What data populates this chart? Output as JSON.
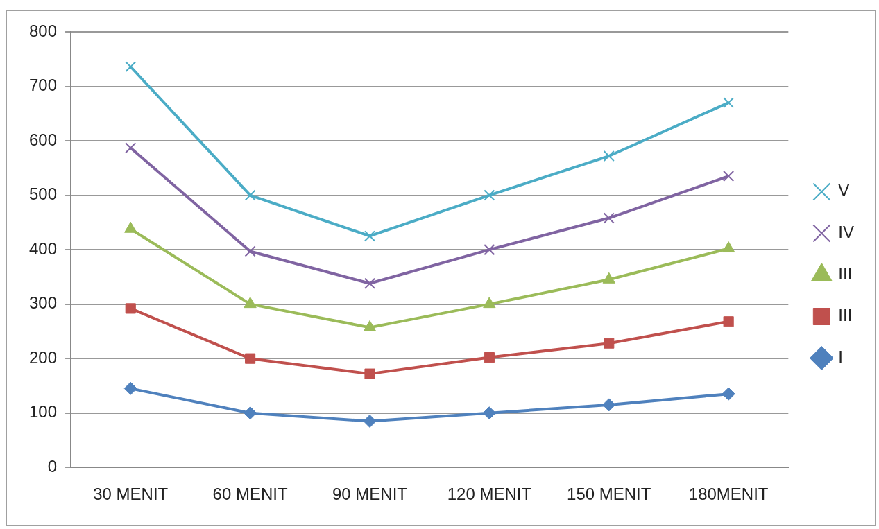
{
  "chart_data": {
    "type": "line",
    "categories": [
      "30 MENIT",
      "60 MENIT",
      "90 MENIT",
      "120 MENIT",
      "150 MENIT",
      "180MENIT"
    ],
    "ylim": [
      0,
      800
    ],
    "yticks": [
      0,
      100,
      200,
      300,
      400,
      500,
      600,
      700,
      800
    ],
    "grid": "y",
    "legend": "right",
    "line_style": "solid",
    "series": [
      {
        "name": "I",
        "color": "#4f81bd",
        "marker": "diamond",
        "values": [
          145,
          100,
          85,
          100,
          115,
          135
        ]
      },
      {
        "name": "III",
        "color": "#c0504d",
        "marker": "square",
        "values": [
          292,
          200,
          172,
          202,
          228,
          268
        ]
      },
      {
        "name": "III",
        "color": "#9bbb59",
        "marker": "triangle",
        "values": [
          438,
          300,
          257,
          300,
          345,
          402
        ]
      },
      {
        "name": "IV",
        "color": "#8064a2",
        "marker": "cross",
        "values": [
          587,
          397,
          338,
          400,
          458,
          535
        ]
      },
      {
        "name": "V",
        "color": "#4bacc6",
        "marker": "cross",
        "values": [
          736,
          500,
          425,
          500,
          572,
          670
        ]
      }
    ]
  }
}
